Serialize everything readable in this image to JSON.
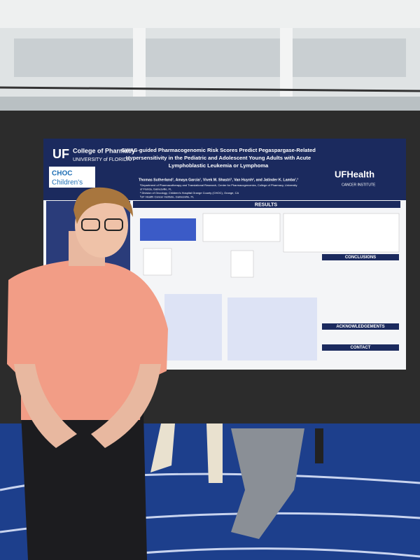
{
  "poster": {
    "logo_left": {
      "abbr": "UF",
      "line1": "College of Pharmacy",
      "line2": "UNIVERSITY of FLORIDA"
    },
    "logo_choc": {
      "abbr": "CHOC",
      "name": "Children's"
    },
    "title_lines": [
      "GWAS-guided Pharmacogenomic Risk Scores Predict Pegaspargase-Related",
      "Hypersensitivity in the Pediatric and Adolescent Young Adults with Acute",
      "Lymphoblastic Leukemia or Lymphoma"
    ],
    "authors": "Thomas Sutherland¹, Amaya Garcia¹, Vivek M. Shastri¹, Van Huynh², and Jatinder K. Lamba¹,³",
    "affiliations": [
      "¹Department of Pharmacotherapy and Translational Research, Center for Pharmacogenomics, College of Pharmacy, University",
      "of Florida, Gainesville, FL",
      "² Division of Oncology, Children's Hospital Orange County (CHOC), Orange, CA",
      "³UF Health Cancer Institute, Gainesville, FL"
    ],
    "logo_right": {
      "name": "UFHealth",
      "sub": "CANCER INSTITUTE"
    },
    "sections": {
      "results": "RESULTS",
      "conclusions": "CONCLUSIONS",
      "acknowledgements": "ACKNOWLEDGEMENTS",
      "contact": "CONTACT"
    }
  }
}
